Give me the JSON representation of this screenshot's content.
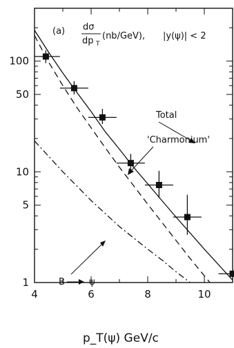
{
  "chart_data": {
    "type": "scatter",
    "title": "",
    "xlabel": "p_T(ψ)   GeV/c",
    "ylabel": "",
    "xscale": "linear",
    "yscale": "log",
    "xlim": [
      4,
      11
    ],
    "ylim": [
      1,
      300
    ],
    "grid": false,
    "legend": "none",
    "x_ticks": [
      {
        "value": 4,
        "label": "4"
      },
      {
        "value": 6,
        "label": "6"
      },
      {
        "value": 8,
        "label": "8"
      },
      {
        "value": 10,
        "label": "10"
      }
    ],
    "y_ticks": [
      {
        "value": 1,
        "label": "1"
      },
      {
        "value": 5,
        "label": "5"
      },
      {
        "value": 10,
        "label": "10"
      },
      {
        "value": 50,
        "label": "50"
      },
      {
        "value": 100,
        "label": "100"
      }
    ],
    "annotation": {
      "panel": "(a)",
      "quantity_num": "dσ",
      "quantity_den": "dp",
      "quantity_den_sub": "T",
      "units": "(nb/GeV),",
      "cut": "|y(ψ)| < 2"
    },
    "data_points": [
      {
        "x": 4.4,
        "y": 110,
        "xerr": 0.5,
        "ylow": 96,
        "yhigh": 125
      },
      {
        "x": 5.4,
        "y": 57,
        "xerr": 0.5,
        "ylow": 50,
        "yhigh": 66
      },
      {
        "x": 6.4,
        "y": 31,
        "xerr": 0.5,
        "ylow": 27,
        "yhigh": 37
      },
      {
        "x": 7.4,
        "y": 12,
        "xerr": 0.5,
        "ylow": 10.3,
        "yhigh": 14.5
      },
      {
        "x": 8.4,
        "y": 7.6,
        "xerr": 0.5,
        "ylow": 5.8,
        "yhigh": 10.2
      },
      {
        "x": 9.4,
        "y": 3.9,
        "xerr": 0.5,
        "ylow": 2.7,
        "yhigh": 6.2
      },
      {
        "x": 11.0,
        "y": 1.2,
        "xerr": 0.5,
        "ylow": 1.1,
        "yhigh": 1.3
      }
    ],
    "series": [
      {
        "name": "Total",
        "style": "solid",
        "x": [
          4.0,
          4.5,
          5.0,
          5.5,
          6.0,
          6.5,
          7.0,
          7.5,
          8.0,
          8.5,
          9.0,
          9.5,
          10.0,
          10.5,
          11.0
        ],
        "y": [
          190,
          120,
          78,
          52,
          35,
          23,
          16,
          11,
          7.8,
          5.5,
          3.9,
          2.8,
          2.0,
          1.45,
          1.05
        ]
      },
      {
        "name": "'Charmonium'",
        "style": "dashed",
        "x": [
          4.0,
          4.5,
          5.0,
          5.5,
          6.0,
          6.5,
          7.0,
          7.5,
          8.0,
          8.5,
          9.0,
          9.5,
          10.0,
          10.2
        ],
        "y": [
          170,
          98,
          60,
          38,
          25,
          16.5,
          11,
          7.5,
          5.1,
          3.5,
          2.4,
          1.65,
          1.15,
          1.0
        ]
      },
      {
        "name": "B → ψ",
        "style": "dashdot",
        "x": [
          4.0,
          5.0,
          6.0,
          7.0,
          8.0,
          8.5,
          9.0,
          9.5
        ],
        "y": [
          19,
          10,
          5.5,
          3.2,
          2.0,
          1.6,
          1.25,
          1.0
        ]
      }
    ],
    "series_labels": {
      "total": "Total",
      "charmonium": "'Charmonium'",
      "b_left": "B",
      "b_right": "ψ"
    },
    "colors": {
      "ink": "#111111",
      "background": "#ffffff"
    }
  }
}
